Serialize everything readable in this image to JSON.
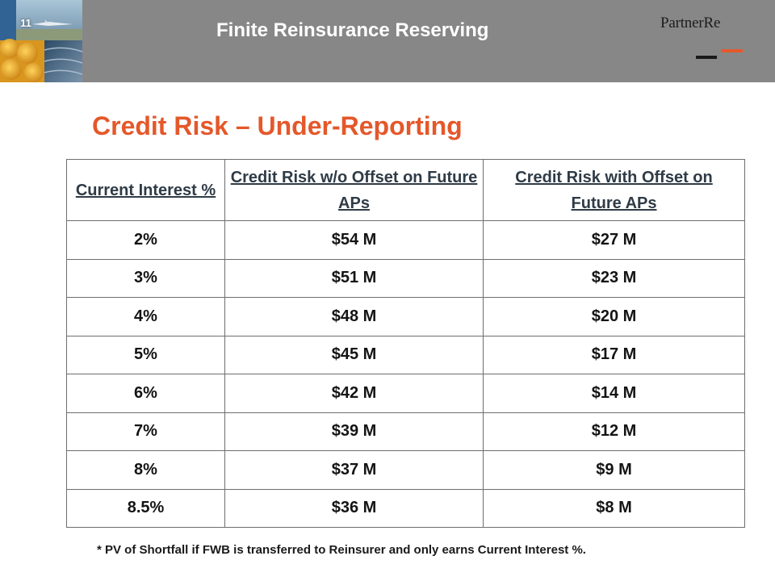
{
  "header": {
    "slide_number": "11",
    "title": "Finite Reinsurance Reserving",
    "logo_text": "PartnerRe"
  },
  "colors": {
    "header_background": "#878787",
    "title_accent": "#e4582a",
    "logo_orange": "#e5592b",
    "logo_black": "#1a1a1a"
  },
  "slide_title": "Credit Risk – Under-Reporting",
  "table": {
    "headers": [
      "Current Interest %",
      "Credit Risk w/o Offset on Future APs",
      "Credit Risk with Offset on Future APs"
    ],
    "rows": [
      [
        "2%",
        "$54 M",
        "$27 M"
      ],
      [
        "3%",
        "$51 M",
        "$23 M"
      ],
      [
        "4%",
        "$48 M",
        "$20 M"
      ],
      [
        "5%",
        "$45 M",
        "$17 M"
      ],
      [
        "6%",
        "$42 M",
        "$14 M"
      ],
      [
        "7%",
        "$39 M",
        "$12 M"
      ],
      [
        "8%",
        "$37 M",
        "$9 M"
      ],
      [
        "8.5%",
        "$36 M",
        "$8 M"
      ]
    ]
  },
  "footnote": "*  PV of Shortfall if FWB is transferred to Reinsurer and only earns Current Interest %."
}
